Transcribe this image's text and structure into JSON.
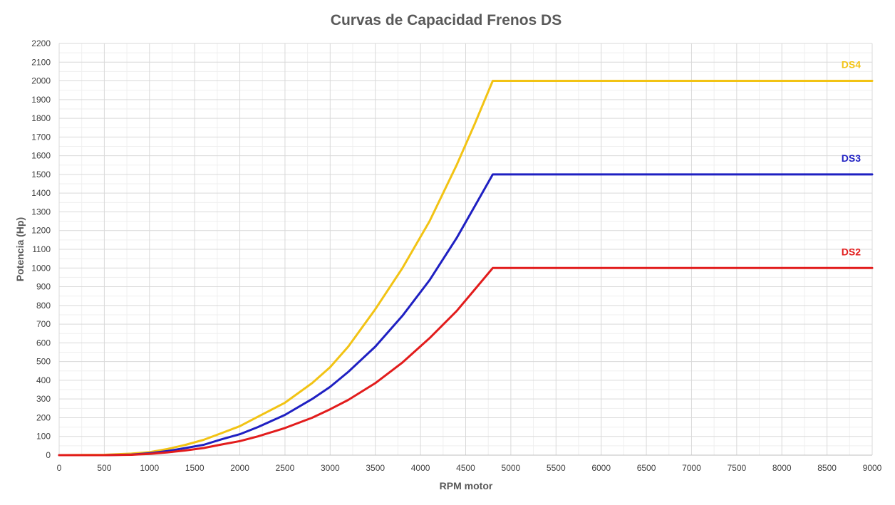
{
  "chart_data": {
    "type": "line",
    "title": "Curvas de Capacidad Frenos DS",
    "xlabel": "RPM motor",
    "ylabel": "Potencia (Hp)",
    "xlim": [
      0,
      9000
    ],
    "ylim": [
      0,
      2200
    ],
    "x_ticks": [
      "0",
      "500",
      "1000",
      "1500",
      "2000",
      "2500",
      "3000",
      "3500",
      "4000",
      "4500",
      "5000",
      "5500",
      "6000",
      "6500",
      "7000",
      "7500",
      "8000",
      "8500",
      "9000"
    ],
    "y_ticks": [
      "0",
      "100",
      "200",
      "300",
      "400",
      "500",
      "600",
      "700",
      "800",
      "900",
      "1000",
      "1100",
      "1200",
      "1300",
      "1400",
      "1500",
      "1600",
      "1700",
      "1800",
      "1900",
      "2000",
      "2100",
      "2200"
    ],
    "grid": "major and minor",
    "legend": "labels at right end of each line",
    "series": [
      {
        "name": "DS4",
        "color": "#f2c314",
        "x": [
          0,
          500,
          800,
          1000,
          1200,
          1400,
          1600,
          1800,
          2000,
          2200,
          2500,
          2800,
          3000,
          3200,
          3500,
          3800,
          4100,
          4400,
          4600,
          4800,
          9000
        ],
        "y": [
          0,
          2,
          8,
          16,
          33,
          55,
          82,
          118,
          155,
          205,
          280,
          385,
          470,
          580,
          780,
          1000,
          1250,
          1550,
          1770,
          2000,
          2000
        ]
      },
      {
        "name": "DS3",
        "color": "#1f20c2",
        "x": [
          0,
          500,
          800,
          1000,
          1200,
          1400,
          1600,
          1800,
          2000,
          2200,
          2500,
          2800,
          3000,
          3200,
          3500,
          3800,
          4100,
          4400,
          4600,
          4800,
          9000
        ],
        "y": [
          0,
          0,
          3,
          10,
          22,
          38,
          55,
          85,
          112,
          150,
          215,
          300,
          365,
          445,
          580,
          745,
          935,
          1160,
          1330,
          1500,
          1500
        ]
      },
      {
        "name": "DS2",
        "color": "#e21c1c",
        "x": [
          0,
          500,
          800,
          1000,
          1200,
          1400,
          1600,
          1800,
          2000,
          2200,
          2500,
          2800,
          3000,
          3200,
          3500,
          3800,
          4100,
          4400,
          4600,
          4800,
          9000
        ],
        "y": [
          0,
          0,
          2,
          7,
          15,
          25,
          38,
          57,
          75,
          100,
          145,
          200,
          245,
          295,
          385,
          495,
          625,
          770,
          885,
          1000,
          1000
        ]
      }
    ]
  }
}
